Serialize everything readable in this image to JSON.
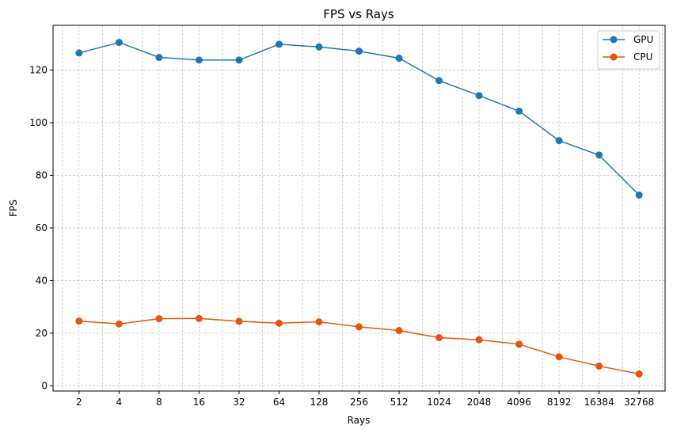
{
  "chart_data": {
    "type": "line",
    "title": "FPS vs Rays",
    "xlabel": "Rays",
    "ylabel": "FPS",
    "x_scale": "log2",
    "x": [
      2,
      4,
      8,
      16,
      32,
      64,
      128,
      256,
      512,
      1024,
      2048,
      4096,
      8192,
      16384,
      32768
    ],
    "x_tick_labels": [
      "2",
      "4",
      "8",
      "16",
      "32",
      "64",
      "128",
      "256",
      "512",
      "1024",
      "2048",
      "4096",
      "8192",
      "16384",
      "32768"
    ],
    "ylim": [
      -2,
      137
    ],
    "y_ticks": [
      0,
      20,
      40,
      60,
      80,
      100,
      120
    ],
    "grid": true,
    "legend_position": "top-right",
    "series": [
      {
        "name": "GPU",
        "color": "#1f77b4",
        "values": [
          126.5,
          130.5,
          124.8,
          123.8,
          123.8,
          129.8,
          128.8,
          127.2,
          124.5,
          116.0,
          110.3,
          104.4,
          93.2,
          87.7,
          72.5
        ]
      },
      {
        "name": "CPU",
        "color": "#e6550d",
        "values": [
          24.6,
          23.5,
          25.5,
          25.6,
          24.5,
          23.8,
          24.3,
          22.4,
          21.0,
          18.3,
          17.5,
          15.8,
          11.0,
          7.5,
          4.5
        ]
      }
    ]
  }
}
